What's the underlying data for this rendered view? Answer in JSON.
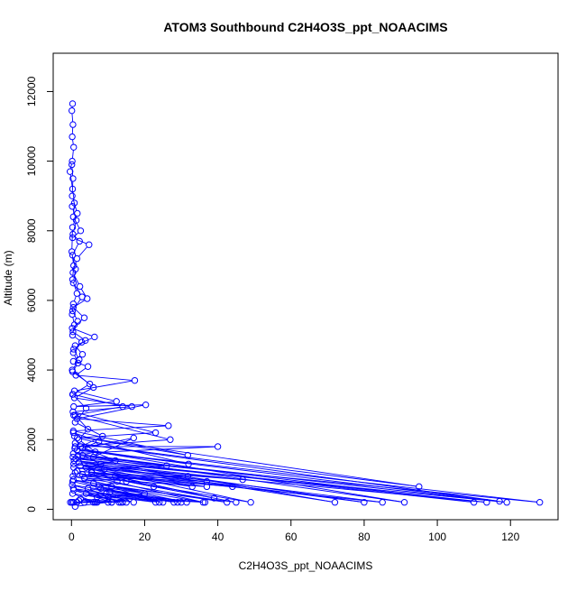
{
  "chart_data": {
    "type": "scatter",
    "connected": true,
    "title": "ATOM3 Southbound C2H4O3S_ppt_NOAACIMS",
    "xlabel": "C2H4O3S_ppt_NOAACIMS",
    "ylabel": "Altitude (m)",
    "xlim": [
      -5,
      133
    ],
    "ylim": [
      -300,
      13100
    ],
    "x_ticks": [
      0,
      20,
      40,
      60,
      80,
      100,
      120
    ],
    "y_ticks": [
      0,
      2000,
      4000,
      6000,
      8000,
      10000,
      12000
    ],
    "x_tick_labels": [
      "0",
      "20",
      "40",
      "60",
      "80",
      "100",
      "120"
    ],
    "y_tick_labels": [
      "0",
      "2000",
      "4000",
      "6000",
      "8000",
      "10000",
      "12000"
    ],
    "grid": false,
    "legend": "none",
    "marker": "open-circle",
    "color": "#0000ff",
    "series": [
      {
        "points": [
          [
            0.3,
            11650
          ],
          [
            0.1,
            11450
          ],
          [
            0.4,
            11050
          ],
          [
            0.2,
            10700
          ],
          [
            0.6,
            10400
          ],
          [
            0.2,
            10000
          ],
          [
            -0.4,
            9700
          ],
          [
            0.3,
            9200
          ],
          [
            0.8,
            8800
          ],
          [
            0.5,
            8400
          ],
          [
            2.5,
            8000
          ],
          [
            0.3,
            7800
          ],
          [
            4.8,
            7600
          ],
          [
            1.5,
            7200
          ],
          [
            0.4,
            6800
          ],
          [
            2.3,
            6400
          ],
          [
            4.3,
            6050
          ],
          [
            0.5,
            5800
          ],
          [
            3.5,
            5500
          ],
          [
            0.2,
            5200
          ],
          [
            6.3,
            4950
          ],
          [
            1.0,
            4700
          ],
          [
            3.0,
            4450
          ],
          [
            0.5,
            4250
          ],
          [
            4.5,
            4100
          ],
          [
            1.2,
            3850
          ],
          [
            17.3,
            3700
          ],
          [
            0.8,
            3400
          ],
          [
            12.3,
            3100
          ],
          [
            0.6,
            2950
          ],
          [
            20.3,
            3000
          ],
          [
            1.5,
            2600
          ],
          [
            26.5,
            2400
          ],
          [
            0.5,
            2250
          ],
          [
            31.8,
            1550
          ],
          [
            0.8,
            2100
          ],
          [
            95.0,
            650
          ],
          [
            1.0,
            1900
          ],
          [
            117.0,
            230
          ],
          [
            1.5,
            1700
          ],
          [
            128.0,
            200
          ],
          [
            0.4,
            1500
          ],
          [
            72.0,
            200
          ],
          [
            2.0,
            1350
          ],
          [
            46.8,
            850
          ],
          [
            0.6,
            1200
          ],
          [
            44.0,
            650
          ],
          [
            3.0,
            1000
          ],
          [
            31.8,
            950
          ],
          [
            0.3,
            800
          ],
          [
            25.0,
            200
          ],
          [
            0.5,
            600
          ],
          [
            13.5,
            200
          ],
          [
            0.2,
            200
          ]
        ]
      },
      {
        "points": [
          [
            0.1,
            9900
          ],
          [
            0.4,
            9500
          ],
          [
            0.2,
            9000
          ],
          [
            1.6,
            8500
          ],
          [
            0.3,
            8100
          ],
          [
            0.1,
            7400
          ],
          [
            0.6,
            7000
          ],
          [
            0.3,
            6600
          ],
          [
            1.5,
            6200
          ],
          [
            0.5,
            5900
          ],
          [
            0.2,
            5600
          ],
          [
            0.8,
            5300
          ],
          [
            0.3,
            5000
          ],
          [
            2.8,
            4800
          ],
          [
            0.5,
            4500
          ],
          [
            1.8,
            4200
          ],
          [
            0.3,
            3950
          ],
          [
            5.0,
            3600
          ],
          [
            0.4,
            3300
          ],
          [
            14.0,
            2950
          ],
          [
            0.6,
            2700
          ],
          [
            27.0,
            2000
          ],
          [
            1.0,
            1800
          ],
          [
            40.0,
            1800
          ],
          [
            0.5,
            1600
          ],
          [
            110.0,
            200
          ],
          [
            1.2,
            1450
          ],
          [
            113.5,
            200
          ],
          [
            0.6,
            1300
          ],
          [
            85.0,
            200
          ],
          [
            1.5,
            1100
          ],
          [
            37.0,
            800
          ],
          [
            0.4,
            950
          ],
          [
            30.0,
            200
          ],
          [
            0.2,
            700
          ],
          [
            17.0,
            200
          ],
          [
            0.3,
            450
          ],
          [
            6.5,
            200
          ],
          [
            -0.3,
            200
          ]
        ]
      },
      {
        "points": [
          [
            0.2,
            8700
          ],
          [
            1.3,
            8300
          ],
          [
            0.4,
            7900
          ],
          [
            2.2,
            7700
          ],
          [
            0.3,
            7300
          ],
          [
            1.1,
            6900
          ],
          [
            0.5,
            6500
          ],
          [
            2.9,
            6100
          ],
          [
            0.3,
            5700
          ],
          [
            1.7,
            5400
          ],
          [
            0.4,
            5100
          ],
          [
            3.8,
            4850
          ],
          [
            0.6,
            4600
          ],
          [
            2.1,
            4300
          ],
          [
            0.2,
            4000
          ],
          [
            6.0,
            3500
          ],
          [
            0.8,
            3200
          ],
          [
            16.5,
            2950
          ],
          [
            0.4,
            2800
          ],
          [
            23.0,
            2200
          ],
          [
            1.6,
            2050
          ],
          [
            32.0,
            1300
          ],
          [
            0.9,
            1750
          ],
          [
            91.0,
            200
          ],
          [
            1.8,
            1550
          ],
          [
            119.0,
            200
          ],
          [
            0.7,
            1400
          ],
          [
            80.0,
            200
          ],
          [
            2.4,
            1250
          ],
          [
            49.0,
            200
          ],
          [
            1.0,
            1050
          ],
          [
            36.0,
            200
          ],
          [
            0.5,
            850
          ],
          [
            24.0,
            200
          ],
          [
            0.6,
            550
          ],
          [
            11.0,
            200
          ],
          [
            0.1,
            200
          ]
        ]
      },
      {
        "points": [
          [
            0.3,
            3300
          ],
          [
            4.0,
            2900
          ],
          [
            1.0,
            2500
          ],
          [
            8.5,
            2100
          ],
          [
            2.5,
            1800
          ],
          [
            12.0,
            1400
          ],
          [
            4.0,
            1200
          ],
          [
            22.5,
            650
          ],
          [
            5.5,
            1050
          ],
          [
            37.0,
            650
          ],
          [
            3.5,
            900
          ],
          [
            42.5,
            200
          ],
          [
            6.0,
            750
          ],
          [
            31.5,
            200
          ],
          [
            8.0,
            600
          ],
          [
            29.0,
            200
          ],
          [
            9.5,
            450
          ],
          [
            36.5,
            200
          ],
          [
            7.0,
            350
          ],
          [
            15.0,
            200
          ],
          [
            10.5,
            500
          ],
          [
            28.0,
            200
          ],
          [
            4.5,
            600
          ],
          [
            13.0,
            200
          ],
          [
            2.0,
            250
          ],
          [
            10.0,
            200
          ],
          [
            1.0,
            80
          ]
        ]
      },
      {
        "points": [
          [
            0.5,
            2200
          ],
          [
            7.5,
            1950
          ],
          [
            3.0,
            1750
          ],
          [
            17.0,
            2050
          ],
          [
            6.0,
            1500
          ],
          [
            26.0,
            1250
          ],
          [
            9.0,
            1150
          ],
          [
            33.0,
            650
          ],
          [
            12.0,
            950
          ],
          [
            39.0,
            320
          ],
          [
            15.0,
            800
          ],
          [
            45.0,
            200
          ],
          [
            11.0,
            650
          ],
          [
            23.0,
            200
          ],
          [
            4.0,
            450
          ],
          [
            14.0,
            200
          ],
          [
            2.5,
            300
          ],
          [
            7.0,
            200
          ],
          [
            0.6,
            200
          ]
        ]
      },
      {
        "points": [
          [
            1.0,
            2700
          ],
          [
            4.5,
            2300
          ],
          [
            2.0,
            2000
          ],
          [
            6.5,
            1650
          ],
          [
            3.0,
            1550
          ],
          [
            8.0,
            1300
          ],
          [
            5.5,
            1100
          ],
          [
            12.5,
            800
          ],
          [
            7.5,
            650
          ],
          [
            20.0,
            450
          ],
          [
            10.0,
            350
          ],
          [
            11.0,
            200
          ],
          [
            3.5,
            200
          ],
          [
            6.0,
            200
          ],
          [
            1.5,
            200
          ]
        ]
      }
    ]
  }
}
